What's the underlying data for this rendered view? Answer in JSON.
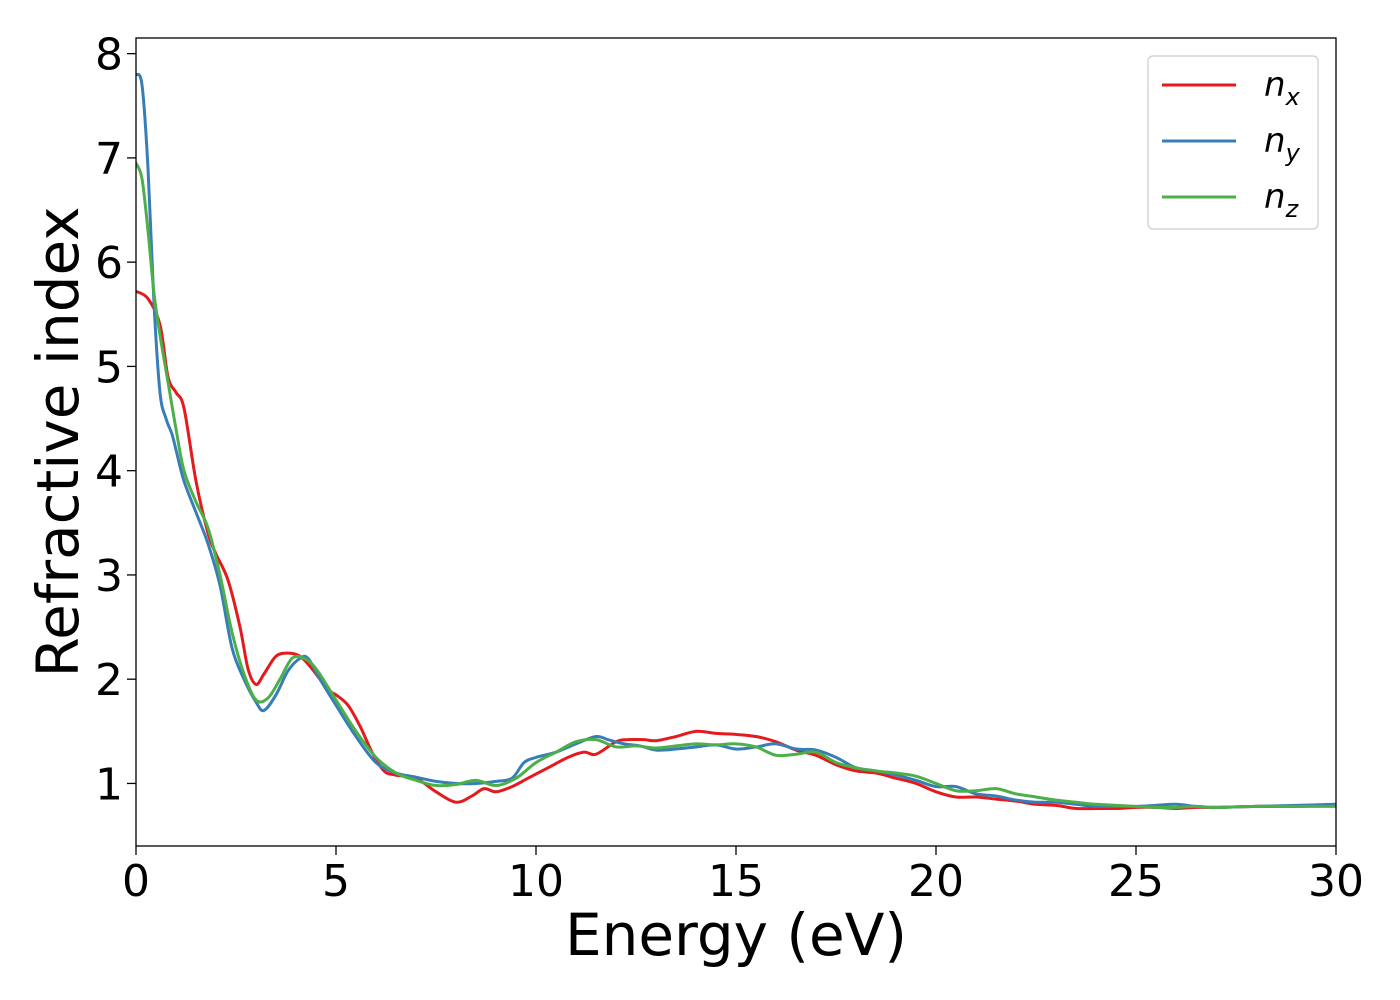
{
  "chart_data": {
    "type": "line",
    "title": "",
    "xlabel": "Energy (eV)",
    "ylabel": "Refractive index",
    "xlim": [
      0,
      30
    ],
    "ylim": [
      0.4,
      8.15
    ],
    "xticks": [
      0,
      5,
      10,
      15,
      20,
      25,
      30
    ],
    "yticks": [
      1,
      2,
      3,
      4,
      5,
      6,
      7,
      8
    ],
    "grid": false,
    "legend_position": "top-right",
    "series": [
      {
        "name": "n",
        "subscript": "x",
        "color": "#e41a1c",
        "x": [
          0,
          0.3,
          0.6,
          0.8,
          1.0,
          1.2,
          1.5,
          1.8,
          2.0,
          2.3,
          2.6,
          2.8,
          3.0,
          3.2,
          3.5,
          3.8,
          4.1,
          4.4,
          4.8,
          5.0,
          5.3,
          5.6,
          5.9,
          6.2,
          6.5,
          7.0,
          7.5,
          8.0,
          8.4,
          8.7,
          9.0,
          9.4,
          9.8,
          10.3,
          10.8,
          11.2,
          11.5,
          12.0,
          12.3,
          12.7,
          13.0,
          13.5,
          14.0,
          14.5,
          15.0,
          15.5,
          16.0,
          16.5,
          17.0,
          17.5,
          18.0,
          18.5,
          19.0,
          19.5,
          20.0,
          20.5,
          21.0,
          21.5,
          22.0,
          22.5,
          23.0,
          23.5,
          24.0,
          24.5,
          25.0,
          25.5,
          26.0,
          26.5,
          27.0,
          28.0,
          29.0,
          30.0
        ],
        "y": [
          5.72,
          5.65,
          5.4,
          4.9,
          4.75,
          4.6,
          3.9,
          3.4,
          3.2,
          2.95,
          2.5,
          2.1,
          1.95,
          2.05,
          2.22,
          2.25,
          2.22,
          2.1,
          1.9,
          1.85,
          1.75,
          1.55,
          1.3,
          1.12,
          1.08,
          1.05,
          0.92,
          0.82,
          0.88,
          0.95,
          0.92,
          0.97,
          1.05,
          1.15,
          1.25,
          1.3,
          1.28,
          1.4,
          1.42,
          1.42,
          1.41,
          1.45,
          1.5,
          1.48,
          1.47,
          1.45,
          1.4,
          1.32,
          1.27,
          1.18,
          1.12,
          1.1,
          1.05,
          1.0,
          0.92,
          0.87,
          0.87,
          0.85,
          0.83,
          0.8,
          0.79,
          0.76,
          0.76,
          0.76,
          0.77,
          0.77,
          0.76,
          0.77,
          0.77,
          0.78,
          0.78,
          0.79
        ]
      },
      {
        "name": "n",
        "subscript": "y",
        "color": "#377eb8",
        "x": [
          0,
          0.15,
          0.3,
          0.45,
          0.6,
          0.75,
          0.9,
          1.0,
          1.2,
          1.5,
          1.8,
          2.1,
          2.4,
          2.7,
          3.0,
          3.2,
          3.5,
          3.8,
          4.1,
          4.3,
          4.6,
          5.0,
          5.5,
          6.0,
          6.5,
          7.0,
          7.5,
          8.0,
          8.5,
          9.0,
          9.4,
          9.7,
          10.0,
          10.5,
          11.0,
          11.5,
          11.8,
          12.2,
          12.6,
          13.0,
          13.5,
          14.0,
          14.5,
          15.0,
          15.5,
          16.0,
          16.5,
          17.0,
          17.5,
          18.0,
          18.5,
          19.0,
          19.5,
          20.0,
          20.5,
          21.0,
          21.5,
          22.0,
          22.5,
          23.0,
          23.5,
          24.0,
          24.5,
          25.0,
          25.5,
          26.0,
          26.5,
          27.0,
          28.0,
          29.0,
          30.0
        ],
        "y": [
          7.8,
          7.7,
          6.9,
          5.6,
          4.75,
          4.5,
          4.35,
          4.2,
          3.9,
          3.6,
          3.3,
          2.9,
          2.3,
          2.0,
          1.78,
          1.7,
          1.85,
          2.08,
          2.2,
          2.2,
          2.0,
          1.75,
          1.45,
          1.2,
          1.1,
          1.06,
          1.02,
          1.0,
          1.0,
          1.02,
          1.05,
          1.2,
          1.25,
          1.3,
          1.38,
          1.45,
          1.42,
          1.38,
          1.36,
          1.32,
          1.33,
          1.35,
          1.37,
          1.33,
          1.35,
          1.38,
          1.33,
          1.32,
          1.25,
          1.15,
          1.12,
          1.08,
          1.03,
          0.97,
          0.97,
          0.9,
          0.88,
          0.84,
          0.82,
          0.82,
          0.8,
          0.78,
          0.78,
          0.78,
          0.79,
          0.8,
          0.78,
          0.77,
          0.78,
          0.79,
          0.8
        ]
      },
      {
        "name": "n",
        "subscript": "z",
        "color": "#4daf4a",
        "x": [
          0,
          0.15,
          0.3,
          0.45,
          0.6,
          0.8,
          1.0,
          1.2,
          1.5,
          1.8,
          2.1,
          2.4,
          2.7,
          3.0,
          3.3,
          3.6,
          3.9,
          4.2,
          4.5,
          5.0,
          5.5,
          6.0,
          6.5,
          7.0,
          7.5,
          8.0,
          8.5,
          9.0,
          9.5,
          10.0,
          10.5,
          11.0,
          11.5,
          12.0,
          12.5,
          13.0,
          13.5,
          14.0,
          14.5,
          15.0,
          15.5,
          16.0,
          16.5,
          17.0,
          17.5,
          18.0,
          18.5,
          19.0,
          19.5,
          20.0,
          20.5,
          21.0,
          21.5,
          22.0,
          22.5,
          23.0,
          23.5,
          24.0,
          24.5,
          25.0,
          25.5,
          26.0,
          26.5,
          27.0,
          28.0,
          29.0,
          30.0
        ],
        "y": [
          6.95,
          6.8,
          6.3,
          5.7,
          5.3,
          4.85,
          4.4,
          4.0,
          3.7,
          3.45,
          3.0,
          2.45,
          2.05,
          1.8,
          1.82,
          2.0,
          2.2,
          2.2,
          2.1,
          1.8,
          1.5,
          1.25,
          1.1,
          1.03,
          0.98,
          0.99,
          1.03,
          0.98,
          1.05,
          1.2,
          1.3,
          1.4,
          1.42,
          1.35,
          1.36,
          1.34,
          1.36,
          1.38,
          1.37,
          1.38,
          1.35,
          1.27,
          1.28,
          1.3,
          1.2,
          1.15,
          1.12,
          1.1,
          1.07,
          1.0,
          0.93,
          0.93,
          0.95,
          0.9,
          0.87,
          0.84,
          0.82,
          0.8,
          0.79,
          0.78,
          0.77,
          0.77,
          0.78,
          0.77,
          0.78,
          0.78,
          0.78
        ]
      }
    ]
  }
}
